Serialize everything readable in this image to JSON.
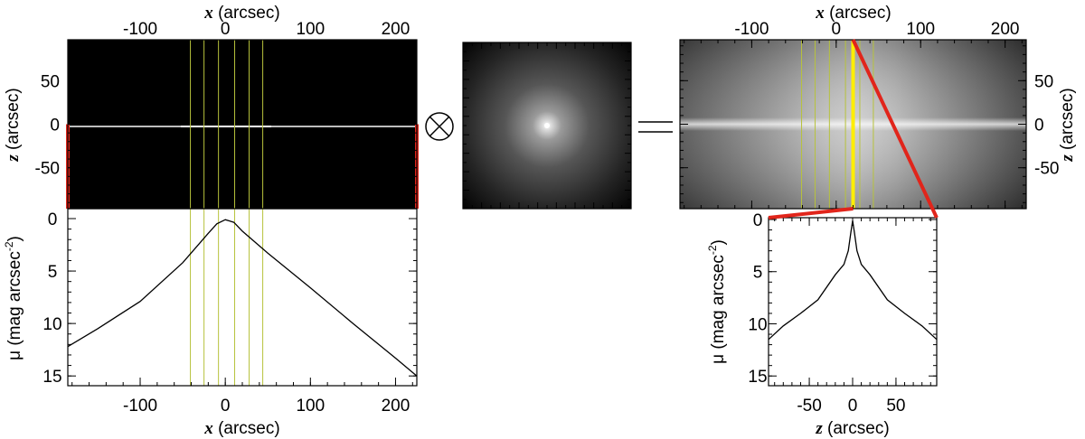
{
  "labels": {
    "x_var": "x",
    "z_var": "z",
    "arcsec": " (arcsec)",
    "mu": "μ (mag arcsec",
    "mu_exp": "-2",
    "mu_close": ")"
  },
  "chart_data": [
    {
      "id": "edge-on-model",
      "type": "heatmap",
      "xlabel": "x (arcsec)",
      "ylabel": "z (arcsec)",
      "xlim": [
        -185,
        225
      ],
      "ylim": [
        -97,
        97
      ],
      "xticks": [
        -100,
        0,
        100,
        200
      ],
      "yticks": [
        -50,
        0,
        50
      ],
      "slit_x": [
        -41,
        -25,
        -8,
        11,
        28,
        44
      ],
      "edge_markers_z": [
        -97,
        0
      ],
      "colors": {
        "slit": "#b7c23c",
        "edge": "#e1251b",
        "background": "#000000"
      }
    },
    {
      "id": "psf",
      "type": "heatmap",
      "title": "",
      "operator_before": "⊗",
      "operator_after": "="
    },
    {
      "id": "convolved-model",
      "type": "heatmap",
      "xlabel": "x (arcsec)",
      "ylabel": "z (arcsec)",
      "xlim": [
        -185,
        225
      ],
      "ylim": [
        -97,
        97
      ],
      "xticks": [
        -100,
        0,
        100,
        200
      ],
      "yticks": [
        -50,
        0,
        50
      ],
      "slit_x": [
        -41,
        -25,
        -8,
        11,
        28,
        44
      ],
      "selected_slit_x": 20,
      "colors": {
        "slit": "#b7c23c",
        "selected": "#ffee00",
        "link": "#e1251b"
      }
    },
    {
      "id": "major-axis-profile",
      "type": "line",
      "xlabel": "x (arcsec)",
      "ylabel": "μ (mag arcsec-2)",
      "xlim": [
        -185,
        225
      ],
      "ylim": [
        15.5,
        0
      ],
      "xticks": [
        -100,
        0,
        100,
        200
      ],
      "yticks": [
        0,
        5,
        10,
        15
      ],
      "slit_x": [
        -41,
        -25,
        -8,
        11,
        28,
        44
      ],
      "series": [
        {
          "x": [
            -185,
            -150,
            -100,
            -50,
            -20,
            -10,
            0,
            10,
            20,
            50,
            100,
            150,
            200,
            225
          ],
          "y": [
            12.2,
            10.5,
            7.9,
            4.2,
            1.4,
            0.5,
            0.1,
            0.35,
            1.2,
            3.3,
            6.6,
            10.0,
            13.3,
            15.0
          ]
        }
      ]
    },
    {
      "id": "minor-axis-profile",
      "type": "line",
      "xlabel": "z (arcsec)",
      "ylabel": "μ (mag arcsec-2)",
      "xlim": [
        -97,
        97
      ],
      "ylim": [
        15.5,
        0
      ],
      "xticks": [
        -50,
        0,
        50
      ],
      "yticks": [
        0,
        5,
        10,
        15
      ],
      "series": [
        {
          "x": [
            -97,
            -80,
            -60,
            -40,
            -20,
            -10,
            -5,
            -2,
            0,
            2,
            5,
            10,
            20,
            40,
            60,
            80,
            97
          ],
          "y": [
            11.5,
            10.2,
            9.0,
            7.7,
            5.3,
            4.3,
            3.0,
            1.2,
            0.1,
            1.2,
            3.0,
            4.3,
            5.3,
            7.7,
            9.0,
            10.2,
            11.5
          ]
        }
      ]
    }
  ]
}
